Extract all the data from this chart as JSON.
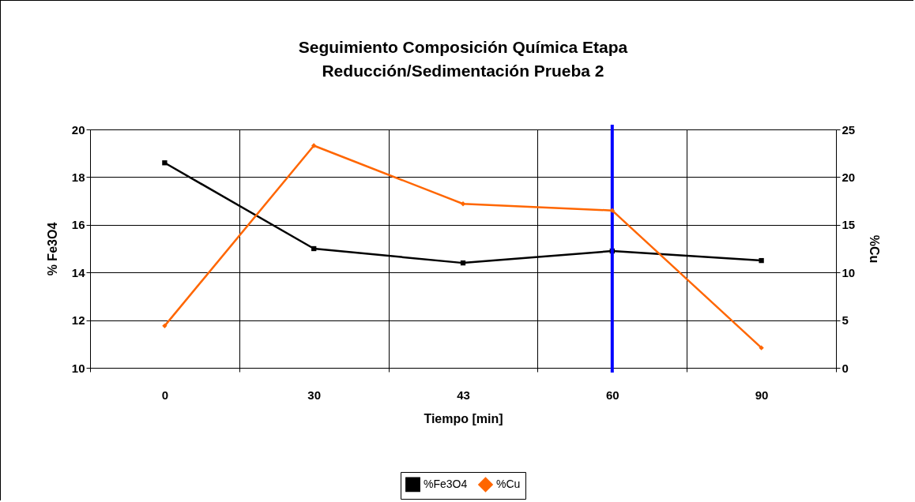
{
  "chart_data": {
    "type": "line",
    "title": "Seguimiento Composición Química Etapa Reducción/Sedimentación Prueba 2",
    "xlabel": "Tiempo [min]",
    "ylabel": "% Fe3O4",
    "y2label": "%Cu",
    "categories": [
      "0",
      "30",
      "43",
      "60",
      "90"
    ],
    "series": [
      {
        "name": "%Fe3O4",
        "color": "#000000",
        "marker": "square",
        "values": [
          18.6,
          15.0,
          14.4,
          14.9,
          14.5
        ]
      },
      {
        "name": "%Cu",
        "color": "#ff6600",
        "marker": "diamond",
        "axis": "y2",
        "values": [
          4.4,
          23.3,
          17.2,
          16.5,
          2.1
        ]
      }
    ],
    "ylim": [
      10,
      20
    ],
    "yticks": [
      10,
      12,
      14,
      16,
      18,
      20
    ],
    "y2lim": [
      0,
      25
    ],
    "y2ticks": [
      0,
      5,
      10,
      15,
      20,
      25
    ],
    "ref_lines": [
      {
        "axis": "x",
        "value": "60",
        "color": "#0000ff"
      }
    ],
    "grid": true,
    "legend": "bottom"
  }
}
